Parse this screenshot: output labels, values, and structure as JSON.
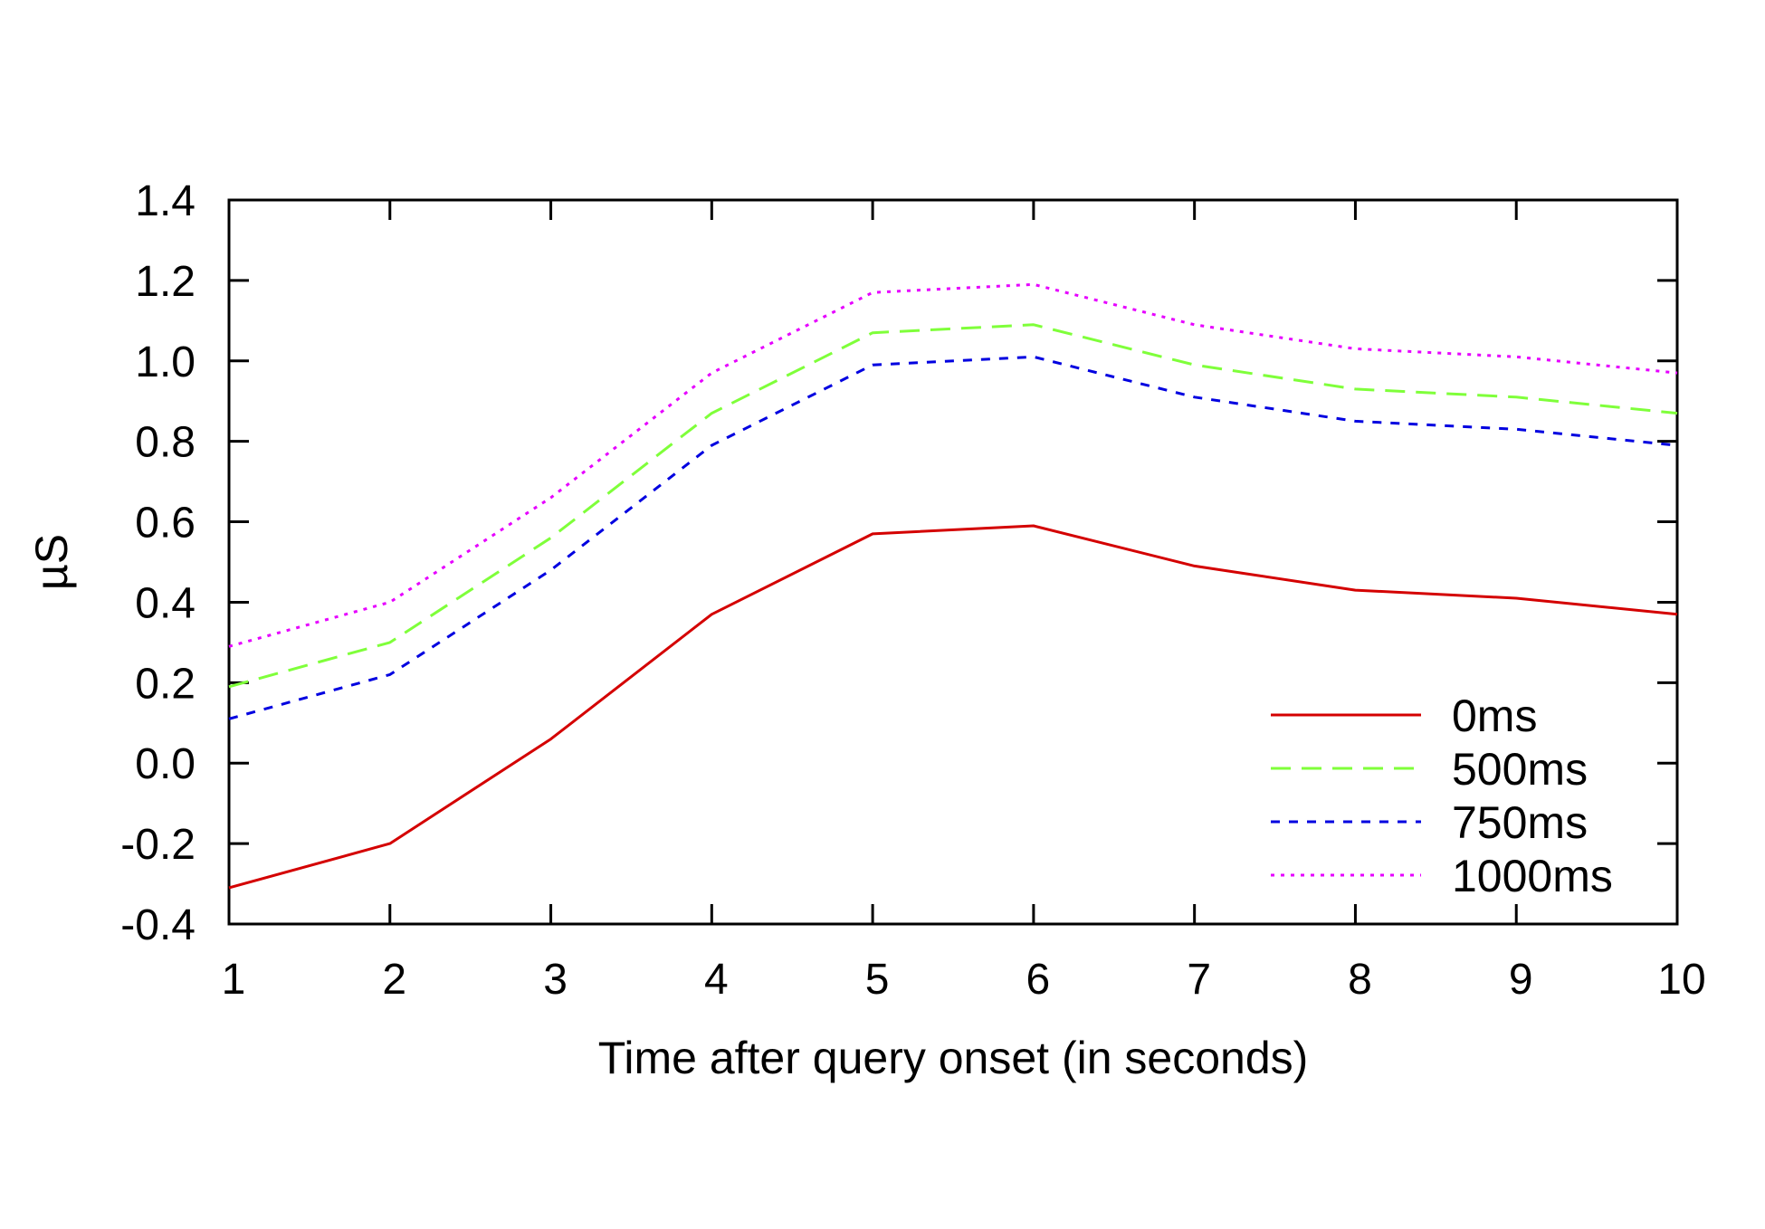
{
  "chart_data": {
    "type": "line",
    "title": "",
    "xlabel": "Time after query onset (in seconds)",
    "ylabel": "µS",
    "xlim": [
      1,
      10
    ],
    "ylim": [
      -0.4,
      1.4
    ],
    "grid": false,
    "legend_position": "bottom-right",
    "x": [
      1,
      2,
      3,
      4,
      5,
      6,
      7,
      8,
      9,
      10
    ],
    "x_ticks": [
      "1",
      "2",
      "3",
      "4",
      "5",
      "6",
      "7",
      "8",
      "9",
      "10"
    ],
    "y_ticks": [
      "-0.4",
      "-0.2",
      "0.0",
      "0.2",
      "0.4",
      "0.6",
      "0.8",
      "1.0",
      "1.2",
      "1.4"
    ],
    "series": [
      {
        "name": "0ms",
        "color": "#d40000",
        "style": "solid",
        "values": [
          -0.31,
          -0.2,
          0.06,
          0.37,
          0.57,
          0.59,
          0.49,
          0.43,
          0.41,
          0.37
        ]
      },
      {
        "name": "500ms",
        "color": "#7fff3a",
        "style": "dashed",
        "values": [
          0.19,
          0.3,
          0.56,
          0.87,
          1.07,
          1.09,
          0.99,
          0.93,
          0.91,
          0.87
        ]
      },
      {
        "name": "750ms",
        "color": "#0000e0",
        "style": "short-dashed",
        "values": [
          0.11,
          0.22,
          0.48,
          0.79,
          0.99,
          1.01,
          0.91,
          0.85,
          0.83,
          0.79
        ]
      },
      {
        "name": "1000ms",
        "color": "#e600ff",
        "style": "dotted",
        "values": [
          0.29,
          0.4,
          0.66,
          0.97,
          1.17,
          1.19,
          1.09,
          1.03,
          1.01,
          0.97
        ]
      }
    ]
  }
}
